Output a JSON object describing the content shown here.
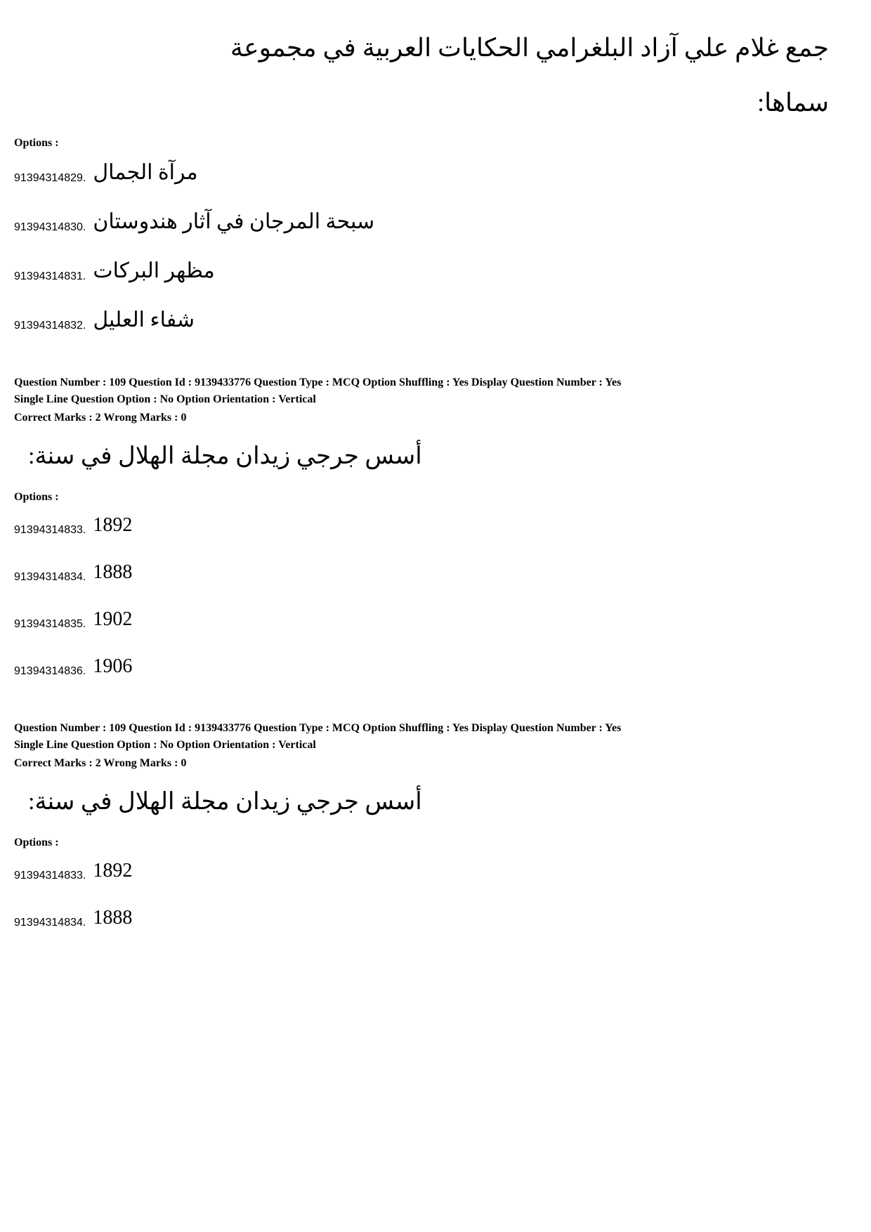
{
  "q108": {
    "text_line1": "جمع غلام علي آزاد البلغرامي الحكايات العربية في مجموعة",
    "text_line2": "سماها:",
    "options_label": "Options :",
    "options": [
      {
        "id": "91394314829.",
        "text": "مرآة الجمال"
      },
      {
        "id": "91394314830.",
        "text": "سبحة المرجان في آثار هندوستان"
      },
      {
        "id": "91394314831.",
        "text": "مظهر البركات"
      },
      {
        "id": "91394314832.",
        "text": "شفاء العليل"
      }
    ]
  },
  "q109a": {
    "meta_line1": "Question Number : 109  Question Id : 9139433776  Question Type : MCQ  Option Shuffling : Yes  Display Question Number : Yes",
    "meta_line2": "Single Line Question Option : No  Option Orientation : Vertical",
    "marks": "Correct Marks : 2  Wrong Marks : 0",
    "question_text": "أسس جرجي زيدان مجلة الهلال في سنة:",
    "options_label": "Options :",
    "options": [
      {
        "id": "91394314833.",
        "text": "1892"
      },
      {
        "id": "91394314834.",
        "text": "1888"
      },
      {
        "id": "91394314835.",
        "text": "1902"
      },
      {
        "id": "91394314836.",
        "text": "1906"
      }
    ]
  },
  "q109b": {
    "meta_line1": "Question Number : 109  Question Id : 9139433776  Question Type : MCQ  Option Shuffling : Yes  Display Question Number : Yes",
    "meta_line2": "Single Line Question Option : No  Option Orientation : Vertical",
    "marks": "Correct Marks : 2  Wrong Marks : 0",
    "question_text": "أسس جرجي زيدان مجلة الهلال في سنة:",
    "options_label": "Options :",
    "options": [
      {
        "id": "91394314833.",
        "text": "1892"
      },
      {
        "id": "91394314834.",
        "text": "1888"
      }
    ]
  }
}
